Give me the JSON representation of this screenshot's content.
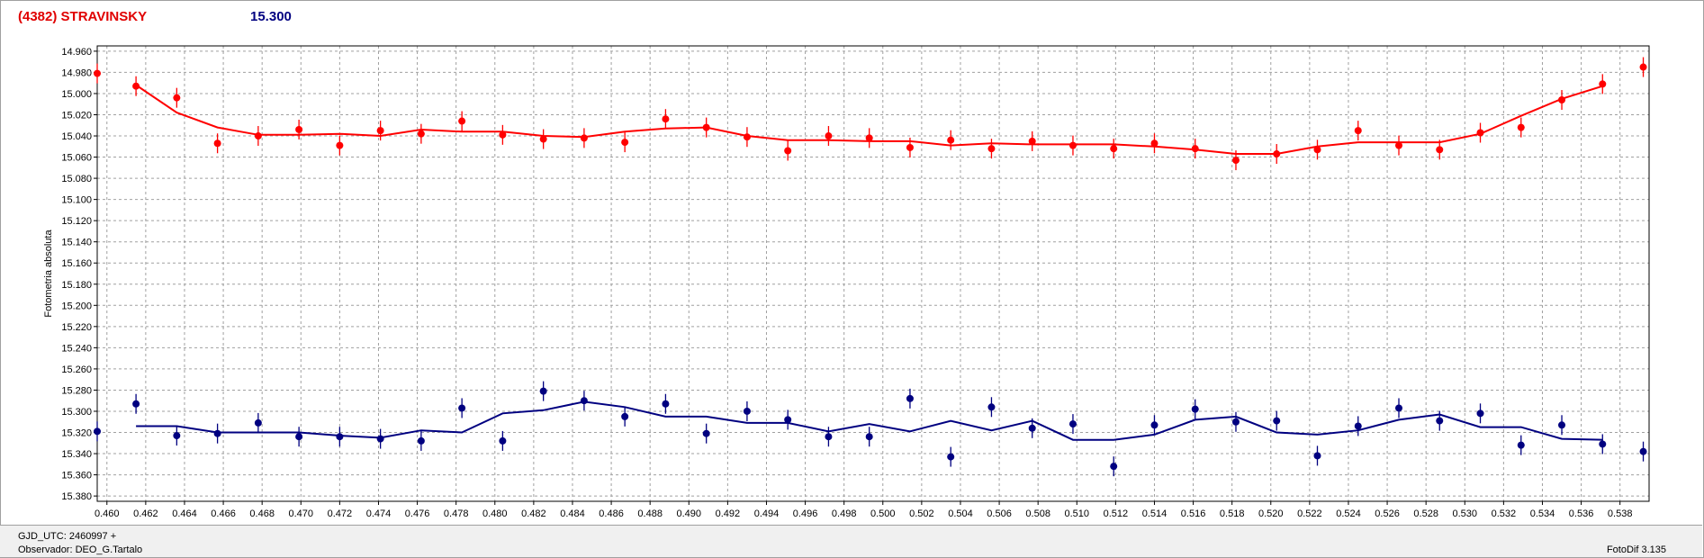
{
  "header": {
    "object_title": "(4382) STRAVINSKY",
    "magnitude_label": "15.300"
  },
  "footer": {
    "gjd_label": "GJD_UTC: 2460997 +",
    "observer_label": "Observador: DEO_G.Tartalo",
    "software_label": "FotoDif 3.135"
  },
  "colors": {
    "red_series": "#ff0000",
    "blue_series": "#000080",
    "grid": "#a0a0a0",
    "axis": "#000000"
  },
  "chart_data": {
    "type": "line",
    "title": "(4382) STRAVINSKY",
    "xlabel": "",
    "ylabel": "Fotometria absoluta",
    "xlim": [
      0.4595,
      0.5395
    ],
    "ylim": [
      14.955,
      15.385
    ],
    "y_inverted": true,
    "grid": true,
    "x_ticks": [
      "0.460",
      "0.462",
      "0.464",
      "0.466",
      "0.468",
      "0.470",
      "0.472",
      "0.474",
      "0.476",
      "0.478",
      "0.480",
      "0.482",
      "0.484",
      "0.486",
      "0.488",
      "0.490",
      "0.492",
      "0.494",
      "0.496",
      "0.498",
      "0.500",
      "0.502",
      "0.504",
      "0.506",
      "0.508",
      "0.510",
      "0.512",
      "0.514",
      "0.516",
      "0.518",
      "0.520",
      "0.522",
      "0.524",
      "0.526",
      "0.528",
      "0.530",
      "0.532",
      "0.534",
      "0.536",
      "0.538"
    ],
    "y_ticks": [
      "14.960",
      "14.980",
      "15.000",
      "15.020",
      "15.040",
      "15.060",
      "15.080",
      "15.100",
      "15.120",
      "15.140",
      "15.160",
      "15.180",
      "15.200",
      "15.220",
      "15.240",
      "15.260",
      "15.280",
      "15.300",
      "15.320",
      "15.340",
      "15.360",
      "15.380"
    ],
    "series": [
      {
        "color": "#ff0000",
        "x": [
          0.4595,
          0.4615,
          0.4636,
          0.4657,
          0.4678,
          0.4699,
          0.472,
          0.4741,
          0.4762,
          0.4783,
          0.4804,
          0.4825,
          0.4846,
          0.4867,
          0.4888,
          0.4909,
          0.493,
          0.4951,
          0.4972,
          0.4993,
          0.5014,
          0.5035,
          0.5056,
          0.5077,
          0.5098,
          0.5119,
          0.514,
          0.5161,
          0.5182,
          0.5203,
          0.5224,
          0.5245,
          0.5266,
          0.5287,
          0.5308,
          0.5329,
          0.535,
          0.5371,
          0.5392
        ],
        "points": [
          14.981,
          14.993,
          15.004,
          15.047,
          15.04,
          15.034,
          15.049,
          15.035,
          15.038,
          15.026,
          15.039,
          15.043,
          15.042,
          15.046,
          15.024,
          15.032,
          15.041,
          15.054,
          15.04,
          15.042,
          15.051,
          15.044,
          15.052,
          15.045,
          15.049,
          15.052,
          15.047,
          15.052,
          15.063,
          15.057,
          15.053,
          15.035,
          15.049,
          15.053,
          15.037,
          15.032,
          15.006,
          14.991,
          14.975
        ],
        "fit": [
          null,
          14.992,
          15.018,
          15.032,
          15.039,
          15.039,
          15.038,
          15.04,
          15.034,
          15.036,
          15.036,
          15.04,
          15.041,
          15.036,
          15.033,
          15.032,
          15.04,
          15.044,
          15.044,
          15.045,
          15.045,
          15.049,
          15.047,
          15.048,
          15.048,
          15.048,
          15.05,
          15.053,
          15.057,
          15.057,
          15.05,
          15.046,
          15.046,
          15.046,
          15.038,
          15.021,
          15.005,
          14.993,
          null
        ]
      },
      {
        "color": "#000080",
        "x": [
          0.4595,
          0.4615,
          0.4636,
          0.4657,
          0.4678,
          0.4699,
          0.472,
          0.4741,
          0.4762,
          0.4783,
          0.4804,
          0.4825,
          0.4846,
          0.4867,
          0.4888,
          0.4909,
          0.493,
          0.4951,
          0.4972,
          0.4993,
          0.5014,
          0.5035,
          0.5056,
          0.5077,
          0.5098,
          0.5119,
          0.514,
          0.5161,
          0.5182,
          0.5203,
          0.5224,
          0.5245,
          0.5266,
          0.5287,
          0.5308,
          0.5329,
          0.535,
          0.5371,
          0.5392
        ],
        "points": [
          15.319,
          15.293,
          15.323,
          15.321,
          15.311,
          15.324,
          15.324,
          15.326,
          15.328,
          15.297,
          15.328,
          15.281,
          15.29,
          15.305,
          15.293,
          15.321,
          15.3,
          15.308,
          15.324,
          15.324,
          15.288,
          15.343,
          15.296,
          15.316,
          15.312,
          15.352,
          15.313,
          15.298,
          15.31,
          15.309,
          15.342,
          15.314,
          15.297,
          15.309,
          15.302,
          15.332,
          15.313,
          15.331,
          15.338
        ],
        "fit": [
          null,
          15.314,
          15.314,
          15.32,
          15.32,
          15.32,
          15.323,
          15.325,
          15.318,
          15.32,
          15.302,
          15.299,
          15.291,
          15.296,
          15.305,
          15.305,
          15.311,
          15.311,
          15.319,
          15.312,
          15.319,
          15.309,
          15.318,
          15.309,
          15.327,
          15.327,
          15.322,
          15.308,
          15.305,
          15.32,
          15.322,
          15.318,
          15.308,
          15.303,
          15.315,
          15.315,
          15.326,
          15.327,
          null
        ]
      }
    ]
  }
}
